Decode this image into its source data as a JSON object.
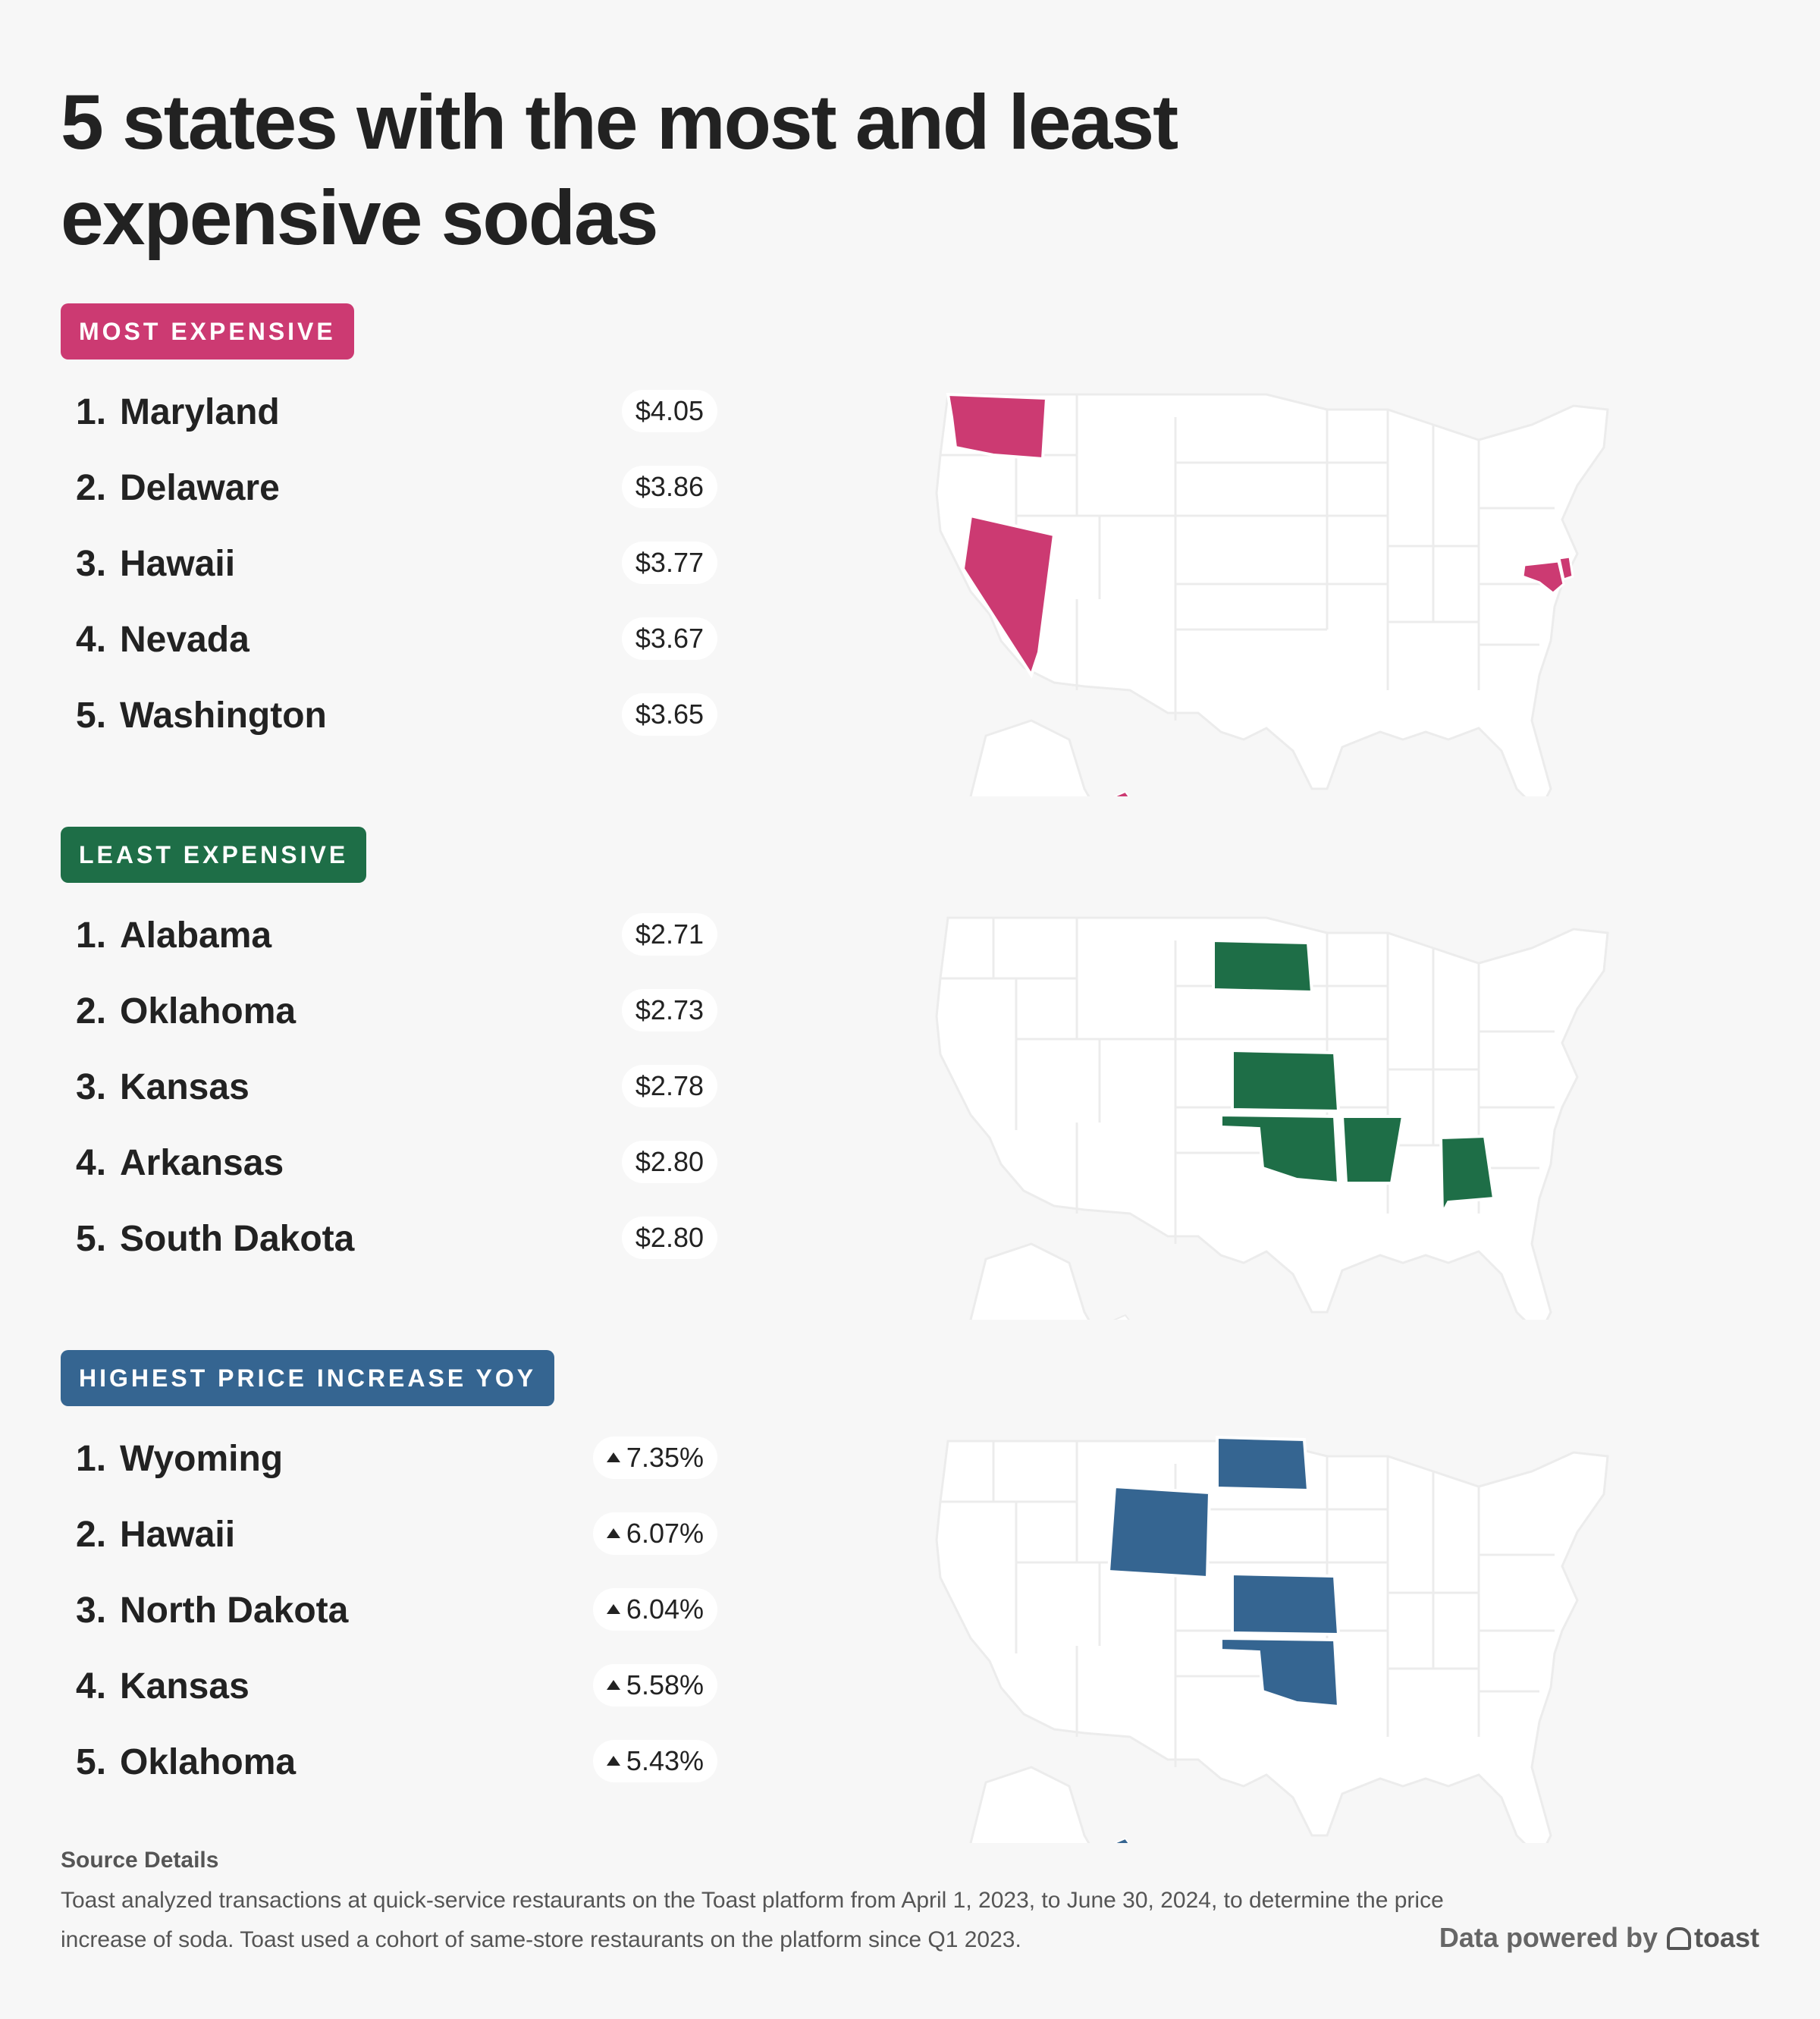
{
  "title": "5 states with the most and least expensive sodas",
  "colors": {
    "most": "#cc3a72",
    "least": "#1e6e47",
    "increase": "#356591",
    "map_land": "#ffffff",
    "map_border": "#eeeeee"
  },
  "sections": [
    {
      "badge": "MOST EXPENSIVE",
      "items": [
        {
          "rank": "1.",
          "state": "Maryland",
          "value": "$4.05"
        },
        {
          "rank": "2.",
          "state": "Delaware",
          "value": "$3.86"
        },
        {
          "rank": "3.",
          "state": "Hawaii",
          "value": "$3.77"
        },
        {
          "rank": "4.",
          "state": "Nevada",
          "value": "$3.67"
        },
        {
          "rank": "5.",
          "state": "Washington",
          "value": "$3.65"
        }
      ]
    },
    {
      "badge": "LEAST EXPENSIVE",
      "items": [
        {
          "rank": "1.",
          "state": "Alabama",
          "value": "$2.71"
        },
        {
          "rank": "2.",
          "state": "Oklahoma",
          "value": "$2.73"
        },
        {
          "rank": "3.",
          "state": "Kansas",
          "value": "$2.78"
        },
        {
          "rank": "4.",
          "state": "Arkansas",
          "value": "$2.80"
        },
        {
          "rank": "5.",
          "state": "South Dakota",
          "value": "$2.80"
        }
      ]
    },
    {
      "badge": "HIGHEST PRICE INCREASE YOY",
      "items": [
        {
          "rank": "1.",
          "state": "Wyoming",
          "value": "7.35%"
        },
        {
          "rank": "2.",
          "state": "Hawaii",
          "value": "6.07%"
        },
        {
          "rank": "3.",
          "state": "North Dakota",
          "value": "6.04%"
        },
        {
          "rank": "4.",
          "state": "Kansas",
          "value": "5.58%"
        },
        {
          "rank": "5.",
          "state": "Oklahoma",
          "value": "5.43%"
        }
      ]
    }
  ],
  "source": {
    "title": "Source Details",
    "text": "Toast analyzed transactions at quick-service restaurants on the Toast platform from April 1, 2023, to June 30, 2024, to determine the price increase of soda. Toast used a cohort of same-store restaurants on the platform since Q1 2023."
  },
  "brand": {
    "prefix": "Data powered by",
    "name": "toast"
  }
}
